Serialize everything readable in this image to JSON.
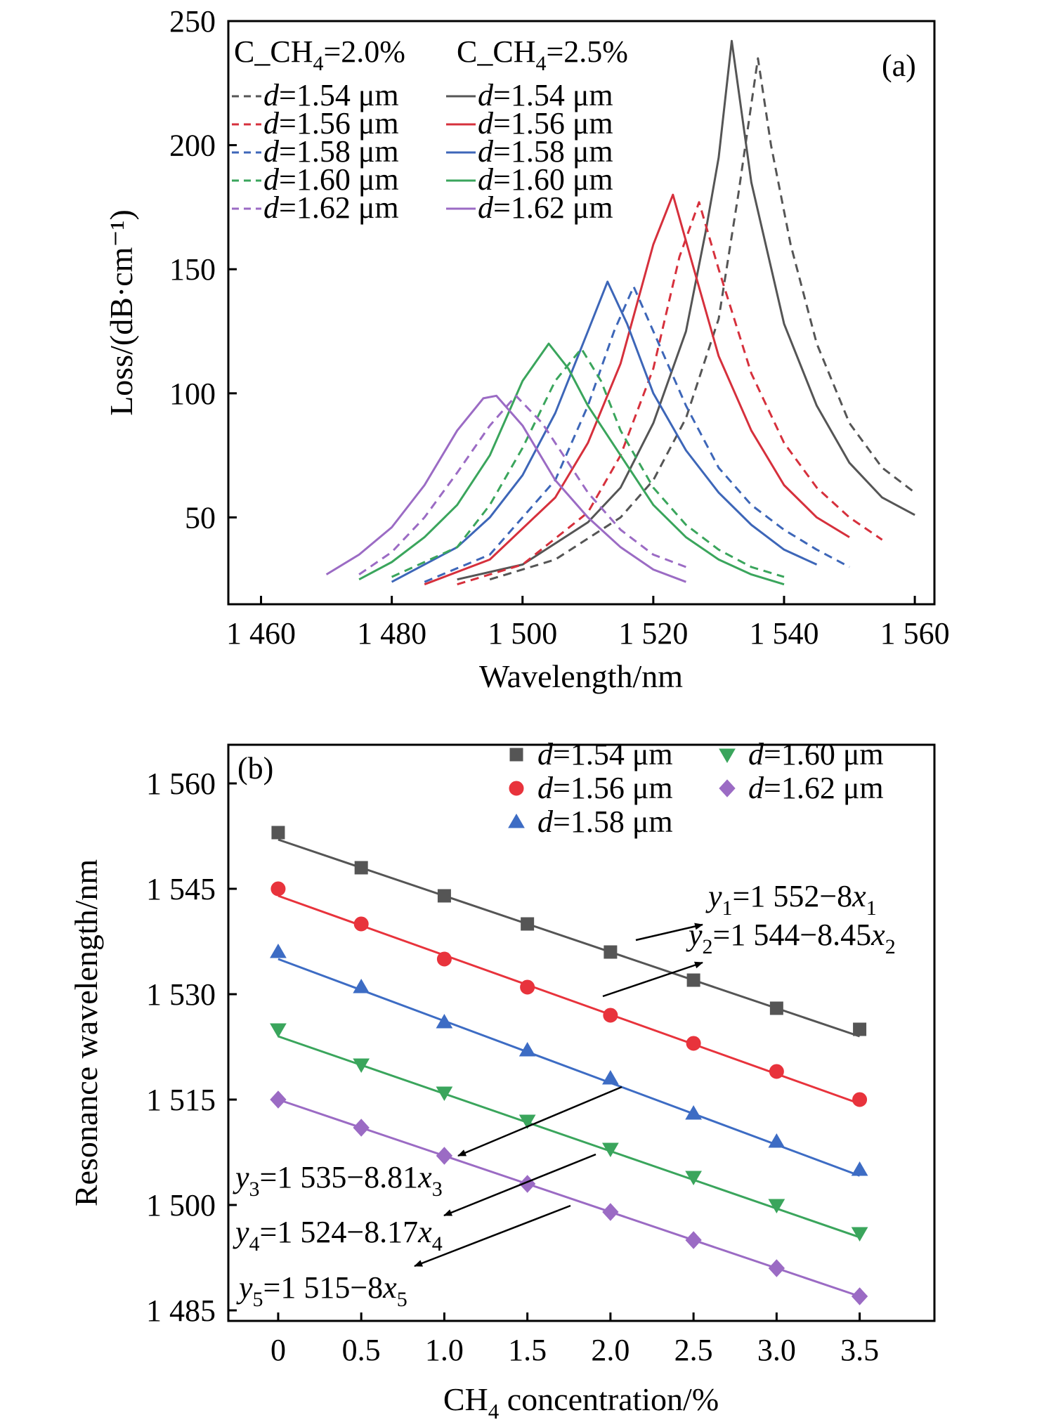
{
  "chart_data": [
    {
      "type": "line",
      "panel_label": "(a)",
      "xlabel": "Wavelength/nm",
      "ylabel": "Loss/(dB·cm⁻¹)",
      "xlim": [
        1455,
        1563
      ],
      "ylim": [
        15,
        250
      ],
      "xticks": [
        1460,
        1480,
        1500,
        1520,
        1540,
        1560
      ],
      "xtick_labels": [
        "1 460",
        "1 480",
        "1 500",
        "1 520",
        "1 540",
        "1 560"
      ],
      "yticks": [
        50,
        100,
        150,
        200,
        250
      ],
      "ytick_labels": [
        "50",
        "100",
        "150",
        "200",
        "250"
      ],
      "legend_position": "top-left",
      "legend_headers": [
        "C_CH4=2.0%",
        "C_CH4=2.5%"
      ],
      "series": [
        {
          "name": "d=1.54 μm",
          "group": "C_CH4=2.0%",
          "style": "dashed",
          "color": "#555555",
          "x": [
            1495,
            1505,
            1515,
            1520,
            1525,
            1530,
            1533,
            1536,
            1538,
            1541,
            1545,
            1550,
            1555,
            1560
          ],
          "y": [
            25,
            33,
            50,
            65,
            90,
            130,
            180,
            235,
            200,
            160,
            120,
            88,
            70,
            60
          ]
        },
        {
          "name": "d=1.54 μm",
          "group": "C_CH4=2.5%",
          "style": "solid",
          "color": "#555555",
          "x": [
            1490,
            1500,
            1510,
            1515,
            1520,
            1525,
            1528,
            1530,
            1532,
            1535,
            1540,
            1545,
            1550,
            1555,
            1560
          ],
          "y": [
            25,
            31,
            48,
            62,
            88,
            125,
            165,
            195,
            242,
            185,
            128,
            95,
            72,
            58,
            51
          ]
        },
        {
          "name": "d=1.56 μm",
          "group": "C_CH4=2.0%",
          "style": "dashed",
          "color": "#d6303c",
          "x": [
            1490,
            1500,
            1510,
            1515,
            1520,
            1524,
            1527,
            1530,
            1535,
            1540,
            1545,
            1550,
            1555
          ],
          "y": [
            23,
            31,
            52,
            75,
            110,
            155,
            177,
            150,
            108,
            80,
            62,
            50,
            41
          ]
        },
        {
          "name": "d=1.56 μm",
          "group": "C_CH4=2.5%",
          "style": "solid",
          "color": "#d6303c",
          "x": [
            1485,
            1495,
            1505,
            1510,
            1515,
            1520,
            1523,
            1526,
            1530,
            1535,
            1540,
            1545,
            1550
          ],
          "y": [
            23,
            33,
            58,
            80,
            112,
            160,
            180,
            152,
            115,
            85,
            63,
            50,
            42
          ]
        },
        {
          "name": "d=1.58 μm",
          "group": "C_CH4=2.0%",
          "style": "dashed",
          "color": "#3d66b8",
          "x": [
            1485,
            1495,
            1505,
            1510,
            1514,
            1517,
            1520,
            1525,
            1530,
            1535,
            1540,
            1545,
            1550
          ],
          "y": [
            24,
            35,
            65,
            95,
            125,
            143,
            125,
            95,
            70,
            55,
            45,
            37,
            30
          ]
        },
        {
          "name": "d=1.58 μm",
          "group": "C_CH4=2.5%",
          "style": "solid",
          "color": "#3d66b8",
          "x": [
            1480,
            1490,
            1495,
            1500,
            1505,
            1510,
            1513,
            1516,
            1520,
            1525,
            1530,
            1535,
            1540,
            1545
          ],
          "y": [
            24,
            38,
            50,
            67,
            92,
            125,
            145,
            128,
            100,
            77,
            60,
            47,
            37,
            31
          ]
        },
        {
          "name": "d=1.60 μm",
          "group": "C_CH4=2.0%",
          "style": "dashed",
          "color": "#3aa55c",
          "x": [
            1480,
            1490,
            1495,
            1500,
            1505,
            1509,
            1512,
            1515,
            1520,
            1525,
            1530,
            1535,
            1540
          ],
          "y": [
            26,
            38,
            55,
            78,
            105,
            118,
            105,
            85,
            62,
            47,
            37,
            30,
            26
          ]
        },
        {
          "name": "d=1.60 μm",
          "group": "C_CH4=2.5%",
          "style": "solid",
          "color": "#3aa55c",
          "x": [
            1475,
            1480,
            1485,
            1490,
            1495,
            1500,
            1504,
            1507,
            1510,
            1515,
            1520,
            1525,
            1530,
            1535,
            1540
          ],
          "y": [
            25,
            32,
            42,
            55,
            75,
            105,
            120,
            110,
            95,
            75,
            55,
            42,
            33,
            27,
            23
          ]
        },
        {
          "name": "d=1.62 μm",
          "group": "C_CH4=2.0%",
          "style": "dashed",
          "color": "#9b6bc4",
          "x": [
            1475,
            1480,
            1485,
            1490,
            1495,
            1499,
            1503,
            1507,
            1510,
            1515,
            1520,
            1525
          ],
          "y": [
            27,
            36,
            50,
            68,
            87,
            99,
            88,
            72,
            60,
            45,
            35,
            30
          ]
        },
        {
          "name": "d=1.62 μm",
          "group": "C_CH4=2.5%",
          "style": "solid",
          "color": "#9b6bc4",
          "x": [
            1470,
            1475,
            1480,
            1485,
            1490,
            1494,
            1496,
            1500,
            1505,
            1510,
            1515,
            1520,
            1525
          ],
          "y": [
            27,
            35,
            46,
            63,
            85,
            98,
            99,
            87,
            65,
            50,
            38,
            29,
            24
          ]
        }
      ]
    },
    {
      "type": "scatter",
      "panel_label": "(b)",
      "xlabel": "CH₄ concentration/%",
      "ylabel": "Resonance wavelength/nm",
      "xlim": [
        -0.3,
        3.95
      ],
      "ylim": [
        1483.5,
        1565.5
      ],
      "xticks": [
        0,
        0.5,
        1.0,
        1.5,
        2.0,
        2.5,
        3.0,
        3.5
      ],
      "xtick_labels": [
        "0",
        "0.5",
        "1.0",
        "1.5",
        "2.0",
        "2.5",
        "3.0",
        "3.5"
      ],
      "yticks": [
        1485,
        1500,
        1515,
        1530,
        1545,
        1560
      ],
      "ytick_labels": [
        "1 485",
        "1 500",
        "1 515",
        "1 530",
        "1 545",
        "1 560"
      ],
      "legend_position": "top-right",
      "x": [
        0,
        0.5,
        1.0,
        1.5,
        2.0,
        2.5,
        3.0,
        3.5
      ],
      "series": [
        {
          "name": "d=1.54 μm",
          "marker": "square",
          "color": "#555555",
          "values": [
            1553,
            1548,
            1544,
            1540,
            1536,
            1532,
            1528,
            1525
          ],
          "fit": {
            "intercept": 1552,
            "slope": -8
          }
        },
        {
          "name": "d=1.56 μm",
          "marker": "circle",
          "color": "#e8333c",
          "values": [
            1545,
            1540,
            1535,
            1531,
            1527,
            1523,
            1519,
            1515
          ],
          "fit": {
            "intercept": 1544,
            "slope": -8.45
          }
        },
        {
          "name": "d=1.58 μm",
          "marker": "triangle-up",
          "color": "#3d6cc4",
          "values": [
            1536,
            1531,
            1526,
            1522,
            1518,
            1513,
            1509,
            1505
          ],
          "fit": {
            "intercept": 1535,
            "slope": -8.81
          }
        },
        {
          "name": "d=1.60 μm",
          "marker": "triangle-down",
          "color": "#3aa55c",
          "values": [
            1525,
            1520,
            1516,
            1512,
            1508,
            1504,
            1500,
            1496
          ],
          "fit": {
            "intercept": 1524,
            "slope": -8.17
          }
        },
        {
          "name": "d=1.62 μm",
          "marker": "diamond",
          "color": "#9b6bc4",
          "values": [
            1515,
            1511,
            1507,
            1503,
            1499,
            1495,
            1491,
            1487
          ],
          "fit": {
            "intercept": 1515,
            "slope": -8
          }
        }
      ],
      "annotations": [
        {
          "y": "y",
          "sub": "1",
          "text": "=1 552−8",
          "x": "x",
          "xsub": "1"
        },
        {
          "y": "y",
          "sub": "2",
          "text": "=1 544−8.45",
          "x": "x",
          "xsub": "2"
        },
        {
          "y": "y",
          "sub": "3",
          "text": "=1 535−8.81",
          "x": "x",
          "xsub": "3"
        },
        {
          "y": "y",
          "sub": "4",
          "text": "=1 524−8.17",
          "x": "x",
          "xsub": "4"
        },
        {
          "y": "y",
          "sub": "5",
          "text": "=1 515−8",
          "x": "x",
          "xsub": "5"
        }
      ]
    }
  ]
}
